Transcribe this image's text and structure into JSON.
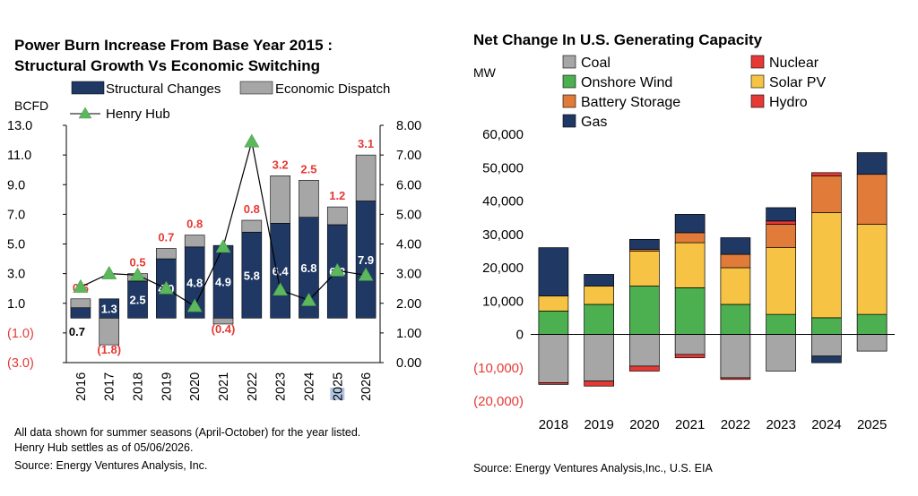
{
  "left_chart": {
    "title_line1": "Power Burn Increase From Base Year 2015 :",
    "title_line2": "Structural Growth Vs Economic Switching",
    "y_left_unit": "BCFD",
    "notes": [
      "All data shown for summer seasons (April-October) for the year listed.",
      "Henry Hub settles as of 05/06/2026."
    ],
    "source": "Source: Energy Ventures Analysis, Inc."
  },
  "right_chart": {
    "title": "Net Change In U.S. Generating Capacity",
    "y_unit": "MW",
    "source": "Source: Energy Ventures Analysis,Inc., U.S. EIA"
  },
  "colors": {
    "structural": "#1f3864",
    "economic": "#a6a6a6",
    "henry_hub": "#5cb85c",
    "red_label": "#e53935",
    "coal": "#a6a6a6",
    "nuclear": "#e53935",
    "wind": "#4caf50",
    "solar": "#f6c344",
    "battery": "#e07b39",
    "hydro": "#e53935",
    "gas": "#1f3864"
  },
  "chart_data": [
    {
      "type": "bar",
      "title": "Power Burn Increase From Base Year 2015 : Structural Growth Vs Economic Switching",
      "categories": [
        "2016",
        "2017",
        "2018",
        "2019",
        "2020",
        "2021",
        "2022",
        "2023",
        "2024",
        "2025",
        "2026"
      ],
      "ylabel": "BCFD",
      "ylim": [
        -3,
        13
      ],
      "yticks": [
        "13.0",
        "11.0",
        "9.0",
        "7.0",
        "5.0",
        "3.0",
        "1.0",
        "(1.0)",
        "(3.0)"
      ],
      "y2lim": [
        0,
        8
      ],
      "y2ticks": [
        "8.00",
        "7.00",
        "6.00",
        "5.00",
        "4.00",
        "3.00",
        "2.00",
        "1.00",
        "0.00"
      ],
      "series": [
        {
          "name": "Structural Changes",
          "values": [
            0.7,
            1.3,
            2.5,
            4.0,
            4.8,
            4.9,
            5.8,
            6.4,
            6.8,
            6.3,
            7.9
          ],
          "labels": [
            "0.7",
            "1.3",
            "2.5",
            "4.0",
            "4.8",
            "4.9",
            "5.8",
            "6.4",
            "6.8",
            "6.3",
            "7.9"
          ]
        },
        {
          "name": "Economic Dispatch",
          "values": [
            0.6,
            -1.8,
            0.5,
            0.7,
            0.8,
            -0.4,
            0.8,
            3.2,
            2.5,
            1.2,
            3.1
          ],
          "labels": [
            "0.6",
            "(1.8)",
            "0.5",
            "0.7",
            "0.8",
            "(0.4)",
            "0.8",
            "3.2",
            "2.5",
            "1.2",
            "3.1"
          ]
        },
        {
          "name": "Henry Hub",
          "axis": "right",
          "values": [
            2.55,
            3.0,
            2.95,
            2.5,
            1.9,
            3.9,
            7.45,
            2.45,
            2.1,
            3.1,
            2.95
          ]
        }
      ],
      "legend": "top",
      "grid": false
    },
    {
      "type": "bar",
      "stacked": true,
      "title": "Net Change In U.S. Generating Capacity",
      "categories": [
        "2018",
        "2019",
        "2020",
        "2021",
        "2022",
        "2023",
        "2024",
        "2025"
      ],
      "ylabel": "MW",
      "ylim": [
        -20000,
        60000
      ],
      "yticks": [
        "60,000",
        "50,000",
        "40,000",
        "30,000",
        "20,000",
        "10,000",
        "0",
        "(10,000)",
        "(20,000)"
      ],
      "series": [
        {
          "name": "Coal",
          "values": [
            -14500,
            -14000,
            -9500,
            -6000,
            -13000,
            -11000,
            -6500,
            -5000
          ]
        },
        {
          "name": "Nuclear",
          "values": [
            -500,
            -1500,
            -1500,
            -1000,
            -500,
            0,
            0,
            0
          ]
        },
        {
          "name": "Onshore Wind",
          "values": [
            7000,
            9000,
            14500,
            14000,
            9000,
            6000,
            5000,
            6000
          ]
        },
        {
          "name": "Solar PV",
          "values": [
            4500,
            5500,
            10500,
            13500,
            11000,
            20000,
            31500,
            27000
          ]
        },
        {
          "name": "Battery Storage",
          "values": [
            0,
            0,
            500,
            3000,
            4000,
            7000,
            11000,
            15000
          ]
        },
        {
          "name": "Hydro",
          "values": [
            0,
            0,
            0,
            0,
            0,
            1000,
            1000,
            0
          ]
        },
        {
          "name": "Gas",
          "values": [
            14500,
            3500,
            3000,
            5500,
            5000,
            4000,
            -2000,
            6500
          ]
        }
      ],
      "legend": "top"
    }
  ]
}
